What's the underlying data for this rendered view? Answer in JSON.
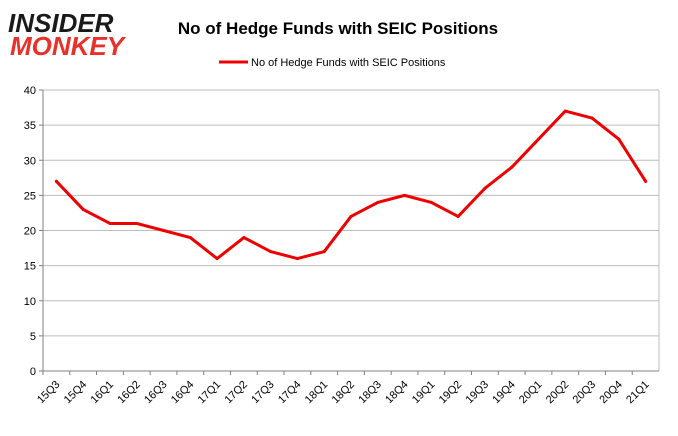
{
  "logo": {
    "line1": "INSIDER",
    "line2": "MONKEY",
    "color_dark": "#1a1a1a",
    "color_accent": "#e8312a"
  },
  "chart_data": {
    "type": "line",
    "title": "No of Hedge Funds with SEIC Positions",
    "xlabel": "",
    "ylabel": "",
    "categories": [
      "15Q3",
      "15Q4",
      "16Q1",
      "16Q2",
      "16Q3",
      "16Q4",
      "17Q1",
      "17Q2",
      "17Q3",
      "17Q4",
      "18Q1",
      "18Q2",
      "18Q3",
      "18Q4",
      "19Q1",
      "19Q2",
      "19Q3",
      "19Q4",
      "20Q1",
      "20Q2",
      "20Q3",
      "20Q4",
      "21Q1"
    ],
    "series": [
      {
        "name": "No of Hedge Funds with SEIC Positions",
        "color": "#ee0000",
        "values": [
          27,
          23,
          21,
          21,
          20,
          19,
          16,
          19,
          17,
          16,
          17,
          22,
          24,
          25,
          24,
          22,
          26,
          29,
          33,
          37,
          36,
          33,
          27
        ]
      }
    ],
    "ylim": [
      0,
      40
    ],
    "yticks": [
      0,
      5,
      10,
      15,
      20,
      25,
      30,
      35,
      40
    ],
    "grid": true,
    "legend_position": "top-center"
  }
}
